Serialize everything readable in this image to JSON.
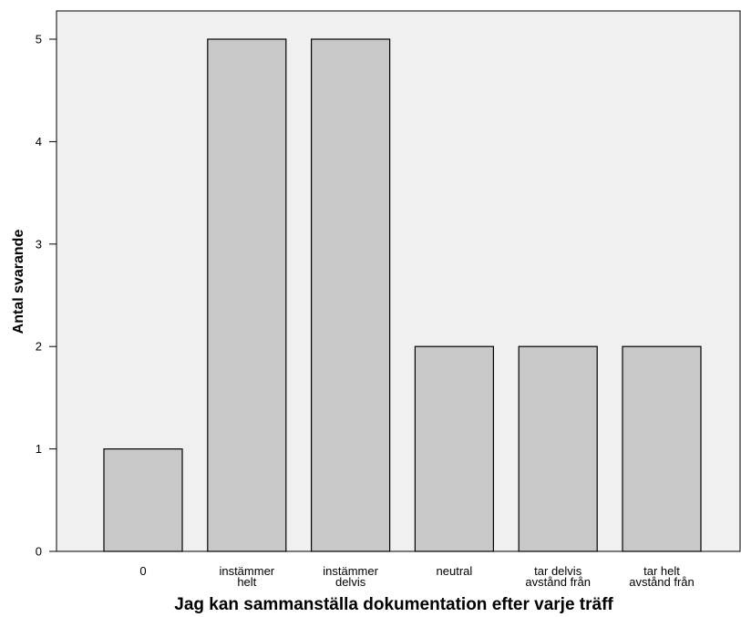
{
  "chart_data": {
    "type": "bar",
    "categories": [
      [
        "0"
      ],
      [
        "instämmer",
        "helt"
      ],
      [
        "instämmer",
        "delvis"
      ],
      [
        "neutral"
      ],
      [
        "tar delvis",
        "avstånd från"
      ],
      [
        "tar helt",
        "avstånd från"
      ]
    ],
    "values": [
      1,
      5,
      5,
      2,
      2,
      2
    ],
    "title": "",
    "xlabel": "Jag kan sammanställa dokumentation efter varje träff",
    "ylabel": "Antal svarande",
    "ylim": [
      0,
      5
    ],
    "yticks": [
      0,
      1,
      2,
      3,
      4,
      5
    ],
    "grid": false,
    "legend": "none",
    "colors": {
      "plot_background": "#f0f0f0",
      "bar_fill": "#c8c8c8",
      "bar_stroke": "#000000",
      "axis": "#000000"
    }
  }
}
